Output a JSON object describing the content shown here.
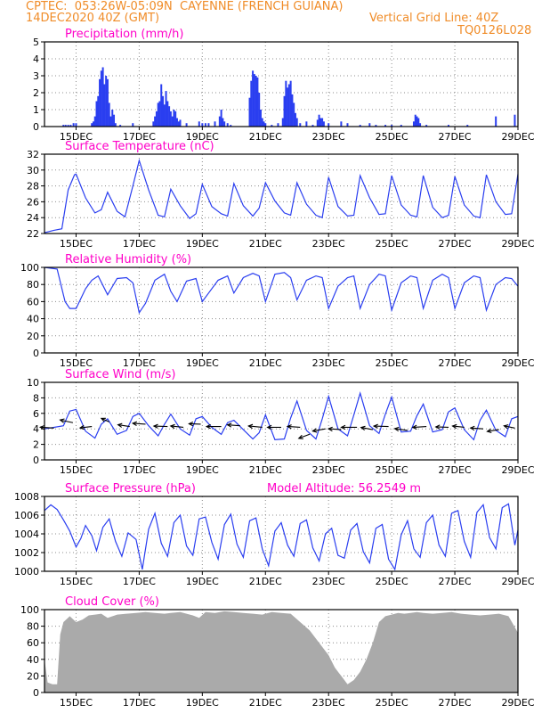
{
  "header": {
    "line1": "CPTEC:  053:26W-05:09N  CAYENNE (FRENCH GUIANA)",
    "line2_left": "14DEC2020 40Z (GMT)",
    "line2_right": "Vertical Grid Line: 40Z",
    "line3_right": "TQ0126L028"
  },
  "colors": {
    "header": "#f08c28",
    "panel_title": "#ff00c8",
    "series_line": "#2a3ef0",
    "precip_bar": "#2a3ef0",
    "cloud_fill": "#aaaaaa",
    "wind_arrow": "#000000",
    "axis": "#000000",
    "grid": "#8c8c8c"
  },
  "x_axis": {
    "tick_labels": [
      "15DEC",
      "17DEC",
      "19DEC",
      "21DEC",
      "23DEC",
      "25DEC",
      "27DEC",
      "29DEC"
    ],
    "tick_days": [
      1,
      3,
      5,
      7,
      9,
      11,
      13,
      15
    ],
    "range_days": [
      0,
      15
    ]
  },
  "chart_data": [
    {
      "id": "precip",
      "type": "bar",
      "title": "Precipitation (mm/h)",
      "ylim": [
        0,
        5
      ],
      "yticks": [
        0,
        1,
        2,
        3,
        4,
        5
      ],
      "grid": true,
      "x": [
        0.6,
        0.67,
        0.75,
        0.83,
        0.92,
        1.0,
        1.5,
        1.55,
        1.6,
        1.65,
        1.7,
        1.75,
        1.8,
        1.85,
        1.9,
        1.95,
        2.0,
        2.05,
        2.1,
        2.15,
        2.2,
        2.25,
        2.4,
        2.8,
        3.45,
        3.5,
        3.55,
        3.6,
        3.65,
        3.7,
        3.75,
        3.8,
        3.85,
        3.9,
        3.95,
        4.0,
        4.05,
        4.1,
        4.15,
        4.2,
        4.25,
        4.3,
        4.5,
        4.9,
        5.0,
        5.1,
        5.2,
        5.4,
        5.55,
        5.6,
        5.65,
        5.7,
        5.8,
        5.9,
        6.5,
        6.55,
        6.6,
        6.65,
        6.7,
        6.75,
        6.8,
        6.85,
        6.9,
        6.95,
        7.0,
        7.2,
        7.4,
        7.55,
        7.6,
        7.65,
        7.7,
        7.75,
        7.8,
        7.85,
        7.9,
        7.95,
        8.0,
        8.1,
        8.3,
        8.5,
        8.65,
        8.7,
        8.75,
        8.8,
        8.85,
        9.0,
        9.4,
        9.6,
        10.0,
        10.3,
        10.5,
        10.8,
        11.0,
        11.3,
        11.7,
        11.75,
        11.8,
        11.85,
        11.9,
        12.1,
        12.8,
        13.4,
        14.3,
        14.9
      ],
      "values": [
        0.1,
        0.1,
        0.1,
        0.1,
        0.2,
        0.2,
        0.2,
        0.3,
        0.6,
        1.5,
        1.8,
        2.8,
        3.3,
        3.5,
        2.5,
        3.0,
        2.8,
        1.4,
        0.6,
        1.0,
        0.7,
        0.2,
        0.1,
        0.2,
        0.3,
        0.6,
        0.9,
        1.4,
        1.5,
        2.5,
        1.8,
        1.3,
        2.1,
        1.5,
        1.2,
        0.9,
        0.6,
        1.0,
        0.9,
        0.5,
        0.3,
        0.4,
        0.2,
        0.3,
        0.2,
        0.2,
        0.2,
        0.3,
        0.6,
        1.0,
        0.5,
        0.3,
        0.2,
        0.1,
        1.7,
        2.7,
        3.3,
        3.1,
        3.0,
        2.9,
        2.0,
        1.0,
        0.5,
        0.3,
        0.2,
        0.1,
        0.2,
        0.5,
        1.8,
        2.7,
        2.3,
        2.5,
        2.7,
        1.9,
        1.4,
        0.8,
        0.5,
        0.2,
        0.3,
        0.1,
        0.4,
        0.7,
        0.5,
        0.5,
        0.3,
        0.2,
        0.3,
        0.2,
        0.1,
        0.2,
        0.1,
        0.1,
        0.1,
        0.1,
        0.3,
        0.7,
        0.6,
        0.5,
        0.2,
        0.1,
        0.1,
        0.1,
        0.6,
        0.7
      ]
    },
    {
      "id": "temp",
      "type": "line",
      "title": "Surface Temperature (nC)",
      "ylim": [
        22,
        32
      ],
      "yticks": [
        22,
        24,
        26,
        28,
        30,
        32
      ],
      "grid": true,
      "x": [
        0,
        0.3,
        0.55,
        0.75,
        0.95,
        1.0,
        1.3,
        1.6,
        1.8,
        2.0,
        2.3,
        2.55,
        2.8,
        3.0,
        3.3,
        3.6,
        3.8,
        4.0,
        4.3,
        4.6,
        4.8,
        5.0,
        5.3,
        5.6,
        5.8,
        6.0,
        6.3,
        6.6,
        6.8,
        7.0,
        7.3,
        7.6,
        7.8,
        8.0,
        8.3,
        8.6,
        8.8,
        9.0,
        9.3,
        9.6,
        9.8,
        10.0,
        10.3,
        10.6,
        10.8,
        11.0,
        11.3,
        11.6,
        11.8,
        12.0,
        12.3,
        12.6,
        12.8,
        13.0,
        13.3,
        13.6,
        13.8,
        14.0,
        14.3,
        14.6,
        14.8,
        15.0
      ],
      "values": [
        22.1,
        22.4,
        22.6,
        27.5,
        29.4,
        29.5,
        26.5,
        24.6,
        25.0,
        27.2,
        24.8,
        24.1,
        28.0,
        31.2,
        27.5,
        24.3,
        24.1,
        27.6,
        25.5,
        23.9,
        24.5,
        28.2,
        25.4,
        24.5,
        24.2,
        28.3,
        25.5,
        24.2,
        25.2,
        28.4,
        26.1,
        24.6,
        24.3,
        28.4,
        25.7,
        24.3,
        24.0,
        29.1,
        25.4,
        24.2,
        24.3,
        29.3,
        26.5,
        24.4,
        24.5,
        29.3,
        25.6,
        24.3,
        24.1,
        29.3,
        25.3,
        24.0,
        24.3,
        29.2,
        25.6,
        24.2,
        24.0,
        29.4,
        26.0,
        24.4,
        24.5,
        29.5
      ]
    },
    {
      "id": "rh",
      "type": "line",
      "title": "Relative Humidity (%)",
      "ylim": [
        0,
        100
      ],
      "yticks": [
        0,
        20,
        40,
        60,
        80,
        100
      ],
      "grid": true,
      "x": [
        0,
        0.4,
        0.65,
        0.8,
        1.0,
        1.3,
        1.5,
        1.7,
        2.0,
        2.3,
        2.6,
        2.8,
        3.0,
        3.2,
        3.5,
        3.8,
        4.0,
        4.2,
        4.5,
        4.8,
        5.0,
        5.2,
        5.5,
        5.8,
        6.0,
        6.3,
        6.6,
        6.8,
        7.0,
        7.3,
        7.6,
        7.8,
        8.0,
        8.3,
        8.6,
        8.8,
        9.0,
        9.3,
        9.6,
        9.8,
        10.0,
        10.3,
        10.6,
        10.8,
        11.0,
        11.3,
        11.6,
        11.8,
        12.0,
        12.3,
        12.6,
        12.8,
        13.0,
        13.3,
        13.6,
        13.8,
        14.0,
        14.3,
        14.6,
        14.8,
        15.0
      ],
      "values": [
        100,
        98,
        60,
        52,
        52,
        75,
        85,
        90,
        68,
        87,
        88,
        82,
        47,
        58,
        85,
        92,
        72,
        60,
        84,
        87,
        60,
        70,
        85,
        90,
        70,
        88,
        93,
        90,
        60,
        92,
        94,
        88,
        62,
        85,
        90,
        88,
        52,
        78,
        88,
        90,
        52,
        80,
        92,
        90,
        50,
        82,
        90,
        88,
        52,
        85,
        92,
        88,
        52,
        82,
        90,
        88,
        50,
        80,
        88,
        87,
        78
      ]
    },
    {
      "id": "wind",
      "type": "line",
      "title": "Surface Wind (m/s)",
      "ylim": [
        0,
        10
      ],
      "yticks": [
        0,
        2,
        4,
        6,
        8,
        10
      ],
      "grid": true,
      "x": [
        0,
        0.3,
        0.6,
        0.8,
        1.0,
        1.3,
        1.6,
        1.8,
        2.0,
        2.3,
        2.6,
        2.8,
        3.0,
        3.3,
        3.6,
        3.8,
        4.0,
        4.3,
        4.6,
        4.8,
        5.0,
        5.3,
        5.6,
        5.8,
        6.0,
        6.3,
        6.6,
        6.8,
        7.0,
        7.3,
        7.6,
        7.8,
        8.0,
        8.3,
        8.6,
        8.8,
        9.0,
        9.3,
        9.6,
        9.8,
        10.0,
        10.3,
        10.6,
        10.8,
        11.0,
        11.3,
        11.6,
        11.8,
        12.0,
        12.3,
        12.6,
        12.8,
        13.0,
        13.3,
        13.6,
        13.8,
        14.0,
        14.3,
        14.6,
        14.8,
        15.0
      ],
      "values": [
        4.0,
        4.2,
        4.4,
        6.3,
        6.5,
        3.7,
        2.8,
        4.6,
        5.3,
        3.3,
        3.8,
        5.6,
        6.0,
        4.4,
        3.1,
        4.6,
        5.9,
        4.0,
        3.2,
        5.3,
        5.6,
        4.2,
        3.3,
        4.8,
        5.1,
        3.9,
        2.7,
        3.5,
        5.8,
        2.6,
        2.7,
        5.4,
        7.6,
        3.8,
        2.7,
        5.3,
        8.2,
        4.0,
        3.1,
        5.8,
        8.6,
        4.4,
        3.4,
        5.9,
        8.1,
        3.6,
        3.7,
        5.7,
        7.2,
        3.6,
        3.9,
        6.2,
        6.7,
        3.9,
        2.6,
        5.1,
        6.4,
        3.8,
        3.0,
        5.3,
        5.6
      ],
      "arrows": [
        {
          "x": 0.3,
          "y": 4.1,
          "u": -1.4,
          "v": 0.2
        },
        {
          "x": 0.9,
          "y": 4.8,
          "u": -1.3,
          "v": 0.6
        },
        {
          "x": 1.5,
          "y": 4.3,
          "u": -1.2,
          "v": -0.3
        },
        {
          "x": 2.05,
          "y": 4.9,
          "u": -0.8,
          "v": 0.8
        },
        {
          "x": 2.7,
          "y": 4.3,
          "u": -1.2,
          "v": 0.4
        },
        {
          "x": 3.2,
          "y": 4.6,
          "u": -1.3,
          "v": 0.2
        },
        {
          "x": 3.9,
          "y": 4.3,
          "u": -1.4,
          "v": 0.1
        },
        {
          "x": 4.4,
          "y": 4.2,
          "u": -1.3,
          "v": 0.3
        },
        {
          "x": 4.95,
          "y": 4.6,
          "u": -1.2,
          "v": 0.1
        },
        {
          "x": 5.6,
          "y": 4.3,
          "u": -1.5,
          "v": 0.0
        },
        {
          "x": 6.2,
          "y": 4.4,
          "u": -1.3,
          "v": 0.2
        },
        {
          "x": 6.9,
          "y": 4.2,
          "u": -1.4,
          "v": 0.3
        },
        {
          "x": 7.5,
          "y": 4.2,
          "u": -1.4,
          "v": 0.0
        },
        {
          "x": 8.1,
          "y": 4.2,
          "u": -1.3,
          "v": 0.2
        },
        {
          "x": 8.4,
          "y": 3.3,
          "u": -1.1,
          "v": -0.9
        },
        {
          "x": 8.9,
          "y": 4.0,
          "u": -1.3,
          "v": -0.5
        },
        {
          "x": 9.4,
          "y": 3.9,
          "u": -1.3,
          "v": 0.2
        },
        {
          "x": 9.9,
          "y": 4.2,
          "u": -1.6,
          "v": 0.0
        },
        {
          "x": 10.4,
          "y": 3.9,
          "u": -1.2,
          "v": 0.5
        },
        {
          "x": 10.9,
          "y": 4.3,
          "u": -1.5,
          "v": 0.1
        },
        {
          "x": 11.5,
          "y": 3.8,
          "u": -1.3,
          "v": 0.4
        },
        {
          "x": 12.1,
          "y": 4.3,
          "u": -1.4,
          "v": -0.2
        },
        {
          "x": 12.8,
          "y": 4.2,
          "u": -1.3,
          "v": 0.1
        },
        {
          "x": 13.3,
          "y": 4.2,
          "u": -1.2,
          "v": 0.3
        },
        {
          "x": 13.9,
          "y": 4.0,
          "u": -1.3,
          "v": 0.2
        },
        {
          "x": 14.4,
          "y": 3.9,
          "u": -1.2,
          "v": -0.4
        },
        {
          "x": 14.9,
          "y": 4.1,
          "u": -1.1,
          "v": 0.5
        }
      ]
    },
    {
      "id": "pres",
      "type": "line",
      "title": "Surface Pressure (hPa)",
      "subtitle": "Model Altitude: 56.2549  m",
      "ylim": [
        1000,
        1008
      ],
      "yticks": [
        1000,
        1002,
        1004,
        1006,
        1008
      ],
      "grid": true,
      "x": [
        0,
        0.2,
        0.4,
        0.6,
        0.8,
        1.0,
        1.15,
        1.3,
        1.5,
        1.65,
        1.85,
        2.05,
        2.25,
        2.45,
        2.65,
        2.9,
        3.1,
        3.3,
        3.5,
        3.7,
        3.9,
        4.1,
        4.3,
        4.5,
        4.7,
        4.9,
        5.1,
        5.3,
        5.5,
        5.7,
        5.9,
        6.1,
        6.3,
        6.5,
        6.7,
        6.9,
        7.1,
        7.3,
        7.5,
        7.7,
        7.9,
        8.1,
        8.3,
        8.5,
        8.7,
        8.9,
        9.1,
        9.3,
        9.5,
        9.7,
        9.9,
        10.1,
        10.3,
        10.5,
        10.7,
        10.9,
        11.1,
        11.3,
        11.5,
        11.7,
        11.9,
        12.1,
        12.3,
        12.5,
        12.7,
        12.9,
        13.1,
        13.3,
        13.5,
        13.7,
        13.9,
        14.1,
        14.3,
        14.5,
        14.7,
        14.9,
        15.0
      ],
      "values": [
        1006.5,
        1007.1,
        1006.6,
        1005.5,
        1004.3,
        1002.6,
        1003.5,
        1004.9,
        1003.8,
        1002.2,
        1004.7,
        1005.6,
        1003.2,
        1001.6,
        1004.1,
        1003.4,
        1000.2,
        1004.5,
        1006.2,
        1003.0,
        1001.6,
        1005.2,
        1006.0,
        1002.7,
        1001.7,
        1005.6,
        1005.8,
        1003.1,
        1001.3,
        1005.0,
        1006.1,
        1002.9,
        1001.5,
        1005.4,
        1005.7,
        1002.4,
        1000.6,
        1004.3,
        1005.2,
        1002.8,
        1001.6,
        1005.1,
        1005.5,
        1002.5,
        1001.1,
        1004.0,
        1004.6,
        1001.7,
        1001.4,
        1004.4,
        1005.1,
        1002.1,
        1000.9,
        1004.6,
        1005.0,
        1001.3,
        1000.2,
        1003.9,
        1005.4,
        1002.4,
        1001.5,
        1005.2,
        1006.0,
        1002.8,
        1001.6,
        1006.2,
        1006.5,
        1003.2,
        1001.5,
        1006.3,
        1007.1,
        1003.6,
        1002.4,
        1006.8,
        1007.2,
        1002.8,
        1004.4
      ]
    },
    {
      "id": "cloud",
      "type": "area",
      "title": "Cloud Cover (%)",
      "ylim": [
        0,
        100
      ],
      "yticks": [
        0,
        20,
        40,
        60,
        80,
        100
      ],
      "grid": true,
      "x": [
        0,
        0.1,
        0.25,
        0.4,
        0.5,
        0.6,
        0.8,
        1.0,
        1.2,
        1.4,
        1.6,
        1.8,
        2.0,
        2.3,
        2.6,
        2.9,
        3.2,
        3.5,
        3.8,
        4.0,
        4.3,
        4.5,
        4.7,
        4.9,
        5.1,
        5.4,
        5.7,
        6.0,
        6.3,
        6.6,
        6.9,
        7.2,
        7.5,
        7.8,
        8.1,
        8.4,
        8.7,
        9.0,
        9.2,
        9.4,
        9.6,
        9.8,
        10.0,
        10.2,
        10.4,
        10.6,
        10.8,
        11.0,
        11.2,
        11.4,
        11.6,
        11.8,
        12.0,
        12.3,
        12.6,
        12.9,
        13.2,
        13.5,
        13.8,
        14.1,
        14.4,
        14.7,
        15.0
      ],
      "values": [
        40,
        12,
        10,
        10,
        70,
        85,
        92,
        85,
        88,
        93,
        94,
        95,
        90,
        94,
        95,
        96,
        97,
        96,
        95,
        96,
        97,
        95,
        93,
        90,
        97,
        96,
        98,
        97,
        96,
        95,
        94,
        97,
        96,
        95,
        85,
        75,
        60,
        45,
        30,
        20,
        10,
        15,
        25,
        40,
        60,
        85,
        92,
        94,
        96,
        95,
        96,
        97,
        96,
        95,
        96,
        97,
        95,
        94,
        93,
        94,
        95,
        92,
        72
      ]
    }
  ]
}
